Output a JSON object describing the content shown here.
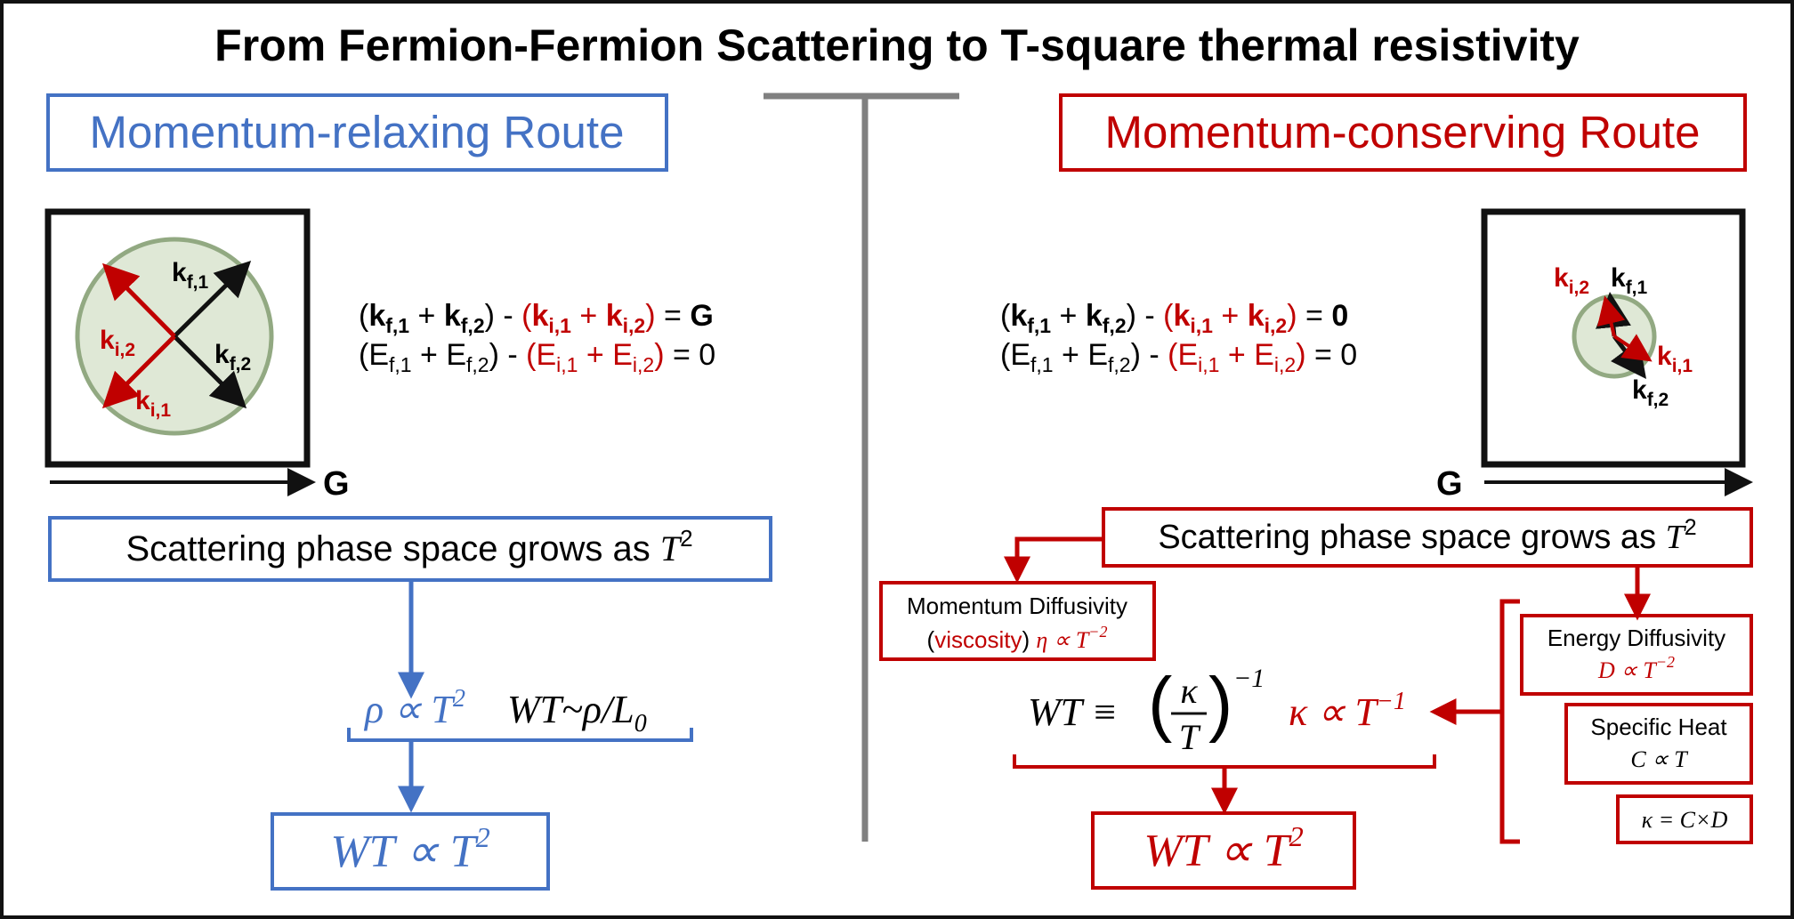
{
  "title": "From Fermion-Fermion Scattering to T-square thermal resistivity",
  "colors": {
    "blue": "#4472c4",
    "red": "#c00000",
    "black": "#111111",
    "gray": "#808080",
    "circle_fill": "#dfe8d6",
    "circle_stroke": "#92a982"
  },
  "left": {
    "heading": "Momentum-relaxing Route",
    "arrow_labels": {
      "kf1": "k",
      "kf1_sub": "f,1",
      "kf2": "k",
      "kf2_sub": "f,2",
      "ki1": "k",
      "ki1_sub": "i,1",
      "ki2": "k",
      "ki2_sub": "i,2"
    },
    "G_label": "G",
    "eq1": {
      "open": "(",
      "k": "k",
      "s_f1": "f,1",
      "plus": " + ",
      "s_f2": "f,2",
      "close": ")",
      "minus": " - ",
      "s_i1": "i,1",
      "s_i2": "i,2",
      "equals": " = ",
      "rhs": "G"
    },
    "eq2": {
      "open": "(",
      "E": "E",
      "s_f1": "f,1",
      "plus": " + ",
      "s_f2": "f,2",
      "close": ")",
      "minus": " - ",
      "s_i1": "i,1",
      "s_i2": "i,2",
      "equals": " = ",
      "rhs": "0"
    },
    "phase_box": {
      "text": "Scattering phase space grows as ",
      "T": "T",
      "exp": "2"
    },
    "rho_rel": {
      "rho": "ρ ∝ T",
      "exp": "2"
    },
    "wt_rel": {
      "text": "WT~ρ/L",
      "sub": "0"
    },
    "result": {
      "text": "WT ∝ T",
      "exp": "2"
    }
  },
  "right": {
    "heading": "Momentum-conserving Route",
    "arrow_labels": {
      "kf1": "k",
      "kf1_sub": "f,1",
      "kf2": "k",
      "kf2_sub": "f,2",
      "ki1": "k",
      "ki1_sub": "i,1",
      "ki2": "k",
      "ki2_sub": "i,2"
    },
    "G_label": "G",
    "eq1_rhs": "0",
    "eq2_rhs": "0",
    "phase_box": {
      "text": "Scattering phase space grows as ",
      "T": "T",
      "exp": "2"
    },
    "momentum_box": {
      "line1": "Momentum Diffusivity",
      "paren_open": "(",
      "viscosity": "viscosity",
      "paren_close": ")",
      "eta": "η ∝ T",
      "eta_exp": "−2"
    },
    "energy_box": {
      "line1": "Energy Diffusivity",
      "rel": "D ∝ T",
      "rel_exp": "−2"
    },
    "heat_box": {
      "line1": "Specific Heat",
      "rel": "C ∝ T"
    },
    "kappa_def": "κ = C×D",
    "wt_def": {
      "lhs": "WT ≡",
      "num": "κ",
      "den": "T",
      "exp": "−1"
    },
    "kappa_rel": {
      "text": "κ ∝ T",
      "exp": "−1"
    },
    "result": {
      "text": "WT ∝ T",
      "exp": "2"
    }
  }
}
